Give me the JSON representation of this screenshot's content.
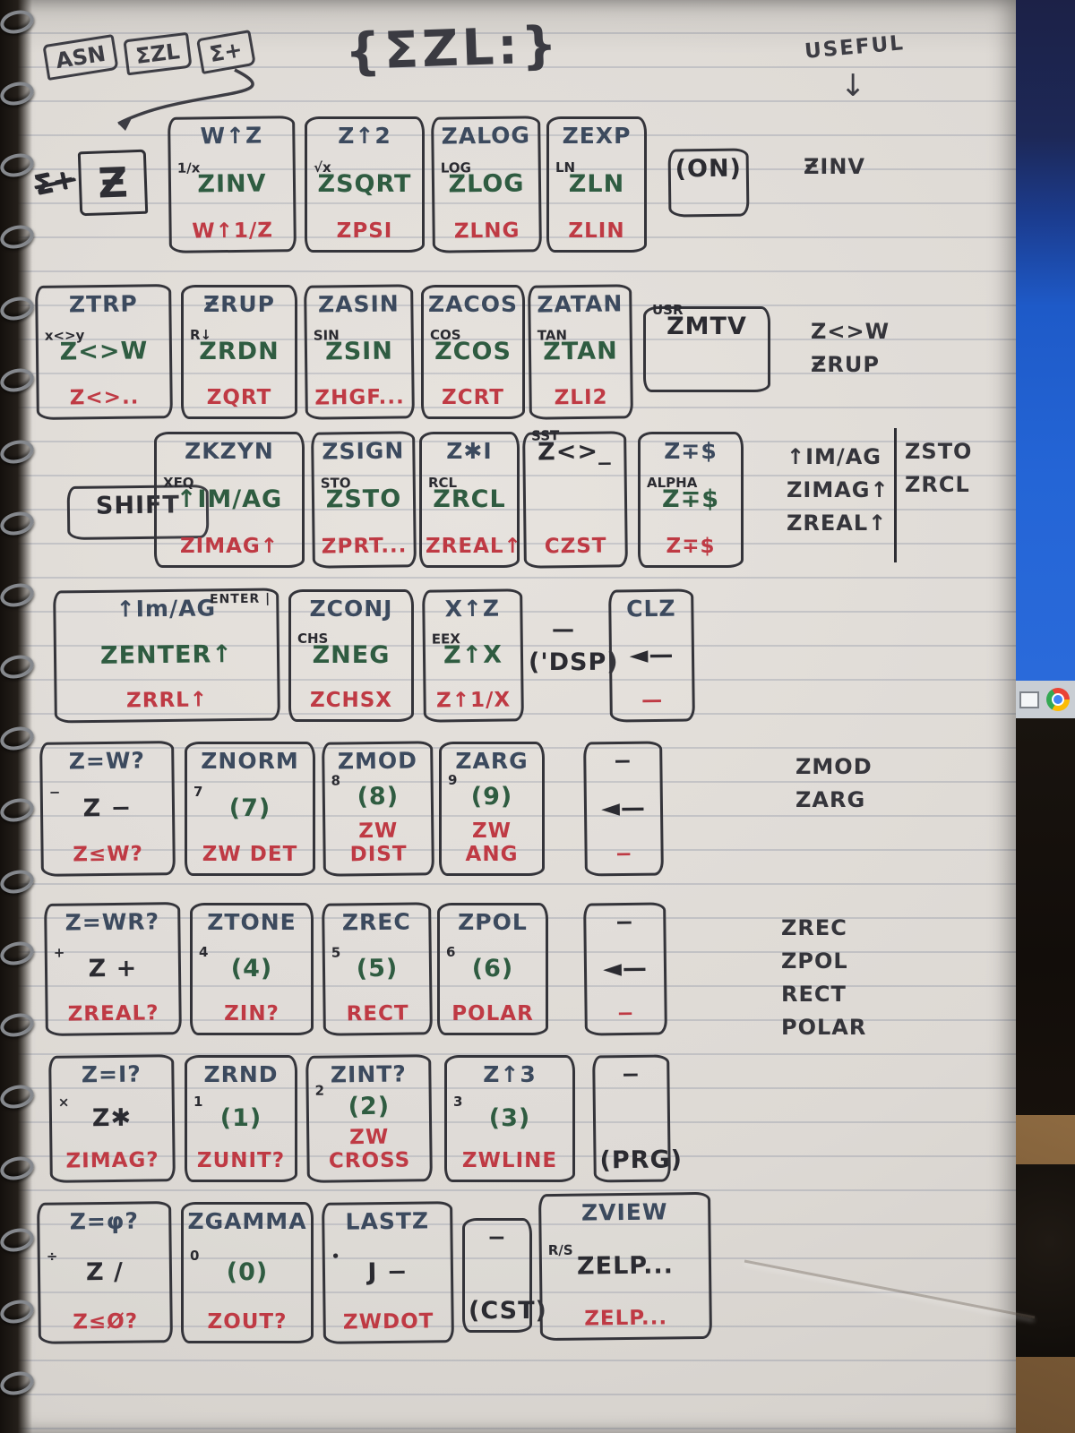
{
  "header": {
    "chips": [
      "ASN",
      "ΣZL",
      "Σ+"
    ],
    "title": "{ΣZL:}",
    "useful": "USEFUL",
    "useful_arrow": "↓"
  },
  "legend": {
    "scribble": "Σ+",
    "z_box": "Ƶ"
  },
  "rows": [
    {
      "keys": [
        {
          "top": "W↑Z",
          "prefix": "1/x",
          "mid": "ZINV",
          "bot": "W↑1/Z"
        },
        {
          "top": "Z↑2",
          "prefix": "√x",
          "mid": "ZSQRT",
          "bot": "ZPSI"
        },
        {
          "top": "ZALOG",
          "prefix": "LOG",
          "mid": "ZLOG",
          "bot": "ZLNG"
        },
        {
          "top": "ZEXP",
          "prefix": "LN",
          "mid": "ZLN",
          "bot": "ZLIN"
        },
        {
          "mid": "(ON)",
          "mid_color": "black",
          "type": "plain"
        }
      ]
    },
    {
      "keys": [
        {
          "top": "ZTRP",
          "prefix": "x<>y",
          "mid": "Z<>W",
          "bot": "Z<>.."
        },
        {
          "top": "ƵRUP",
          "prefix": "R↓",
          "mid": "ZRDN",
          "bot": "ZQRT"
        },
        {
          "top": "ZASIN",
          "prefix": "SIN",
          "mid": "ZSIN",
          "bot": "ZHGF..."
        },
        {
          "top": "ZACOS",
          "prefix": "COS",
          "mid": "ZCOS",
          "bot": "ZCRT"
        },
        {
          "top": "ZATAN",
          "prefix": "TAN",
          "mid": "ZTAN",
          "bot": "ZLI2"
        },
        {
          "prefix": "USR",
          "mid": "ZMTV",
          "mid_color": "black",
          "type": "plain"
        }
      ]
    },
    {
      "keys": [
        {
          "mid": "SHIFT",
          "mid_color": "black",
          "type": "plain"
        },
        {
          "top": "ZKZYN",
          "prefix": "XEQ",
          "mid": "↑IM/AG",
          "bot": "ZIMAG↑"
        },
        {
          "top": "ZSIGN",
          "prefix": "STO",
          "mid": "ZSTO",
          "bot": "ZPRT..."
        },
        {
          "top": "Z✱I",
          "prefix": "RCL",
          "mid": "ZRCL",
          "bot": "ZREAL↑"
        },
        {
          "prefix": "SST",
          "mid": "Z<>_",
          "mid_color": "black",
          "bot": "CZST"
        },
        {
          "top": "Z∓$",
          "prefix": "ALPHA",
          "mid": "Z∓$",
          "bot": "Z∓$"
        }
      ]
    },
    {
      "keys": [
        {
          "top": "↑Im/AG",
          "top_right": "ENTER |",
          "mid": "ZENTER↑",
          "bot": "ZRRL↑"
        },
        {
          "top": "ZCONJ",
          "prefix": "CHS",
          "mid": "ZNEG",
          "bot": "ZCHSX"
        },
        {
          "top": "X↑Z",
          "prefix": "EEX",
          "mid": "Z↑X",
          "bot": "Z↑1/X"
        },
        {
          "top": "—",
          "mid": "('DSP)",
          "mid_color": "black",
          "type": "label"
        },
        {
          "top": "CLZ",
          "mid": "◄—",
          "mid_color": "black",
          "bot": "—"
        }
      ]
    },
    {
      "keys": [
        {
          "top": "Z=W?",
          "prefix": "−",
          "mid": "Z −",
          "mid_color": "black",
          "bot": "Z≤W?"
        },
        {
          "top": "ZNORM",
          "prefix": "7",
          "mid": "(7)",
          "bot": "ZW DET"
        },
        {
          "top": "ZMOD",
          "prefix": "8",
          "mid": "(8)",
          "bot": "ZW DIST"
        },
        {
          "top": "ZARG",
          "prefix": "9",
          "mid": "(9)",
          "bot": "ZW ANG"
        },
        {
          "top": "−",
          "mid": "◄—",
          "mid_color": "black",
          "bot": "−"
        }
      ]
    },
    {
      "keys": [
        {
          "top": "Z=WR?",
          "prefix": "+",
          "mid": "Z +",
          "mid_color": "black",
          "bot": "ZREAL?"
        },
        {
          "top": "ZTONE",
          "prefix": "4",
          "mid": "(4)",
          "bot": "ZIN?"
        },
        {
          "top": "ZREC",
          "prefix": "5",
          "mid": "(5)",
          "bot": "RECT"
        },
        {
          "top": "ZPOL",
          "prefix": "6",
          "mid": "(6)",
          "bot": "POLAR"
        },
        {
          "top": "−",
          "mid": "◄—",
          "mid_color": "black",
          "bot": "−"
        }
      ]
    },
    {
      "keys": [
        {
          "top": "Z=I?",
          "prefix": "×",
          "mid": "Z✱",
          "mid_color": "black",
          "bot": "ZIMAG?"
        },
        {
          "top": "ZRND",
          "prefix": "1",
          "mid": "(1)",
          "bot": "ZUNIT?"
        },
        {
          "top": "ZINT?",
          "prefix": "2",
          "mid": "(2)",
          "bot": "ZW CROSS"
        },
        {
          "top": "Z↑3",
          "prefix": "3",
          "mid": "(3)",
          "bot": "ZWLINE"
        },
        {
          "top": "−",
          "mid": "(PRG)",
          "mid_color": "black"
        }
      ]
    },
    {
      "keys": [
        {
          "top": "Z=φ?",
          "prefix": "÷",
          "mid": "Z /",
          "mid_color": "black",
          "bot": "Z≤Ø?"
        },
        {
          "top": "ZGAMMA",
          "prefix": "0",
          "mid": "(0)",
          "bot": "ZOUT?"
        },
        {
          "top": "LASTZ",
          "prefix": "•",
          "mid": "J −",
          "mid_color": "black",
          "bot": "ZWDOT"
        },
        {
          "top": "−",
          "mid": "(CST)",
          "mid_color": "black"
        },
        {
          "top": "ZVIEW",
          "prefix": "R/S",
          "mid": "ZELP...",
          "mid_color": "black",
          "bot": "ZELP..."
        }
      ]
    }
  ],
  "margin_notes": [
    {
      "lines": [
        "ƵINV"
      ]
    },
    {
      "lines": [
        "Z<>W",
        "ƵRUP"
      ]
    },
    {
      "lines": [
        "↑IM/AG",
        "ZIMAG↑",
        "ZREAL↑"
      ],
      "lines2": [
        "ZSTO",
        "ZRCL"
      ]
    },
    {
      "lines": [
        "ZMOD",
        "ZARG"
      ]
    },
    {
      "lines": [
        "ZREC",
        "ZPOL",
        "RECT",
        "POLAR"
      ]
    }
  ],
  "environment": {
    "taskbar_icons": [
      "window-icon",
      "chrome-icon"
    ]
  }
}
